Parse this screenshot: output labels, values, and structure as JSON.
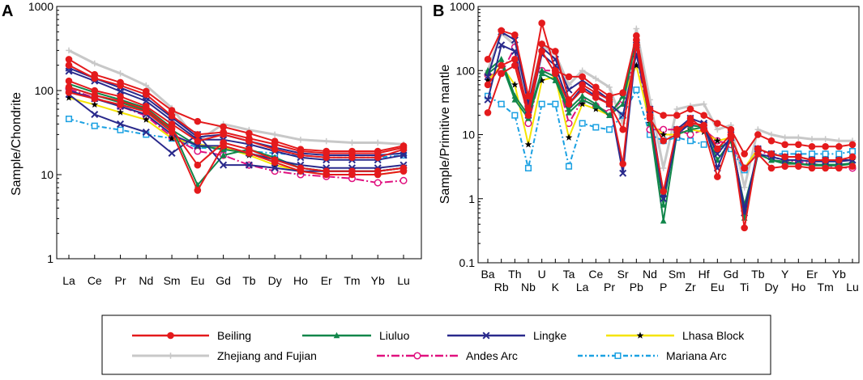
{
  "chart_data": [
    {
      "panel": "A",
      "type": "line",
      "yscale": "log",
      "ylim": [
        1,
        1000
      ],
      "yticks": [
        "1",
        "10",
        "100",
        "1000"
      ],
      "ylabel": "Sample/Chondrite",
      "xlabel": "",
      "categories": [
        "La",
        "Ce",
        "Pr",
        "Nd",
        "Sm",
        "Eu",
        "Gd",
        "Tb",
        "Dy",
        "Ho",
        "Er",
        "Tm",
        "Yb",
        "Lu"
      ],
      "series": [
        {
          "name": "Zhejiang and Fujian",
          "key": "zf",
          "values": [
            300,
            210,
            160,
            115,
            62,
            25,
            40,
            34,
            30,
            26,
            25,
            24,
            24,
            23
          ]
        },
        {
          "name": "Beiling",
          "key": "beiling",
          "values": [
            235,
            155,
            125,
            98,
            58,
            43,
            37,
            31,
            25,
            20,
            19,
            19,
            19,
            22
          ]
        },
        {
          "name": "Beiling",
          "key": "beiling",
          "values": [
            200,
            140,
            115,
            90,
            50,
            30,
            32,
            27,
            23,
            19,
            18,
            18,
            18,
            21
          ]
        },
        {
          "name": "Beiling",
          "key": "beiling",
          "values": [
            130,
            100,
            85,
            65,
            40,
            25,
            30,
            25,
            20,
            17,
            16,
            16,
            16,
            20
          ]
        },
        {
          "name": "Beiling",
          "key": "beiling",
          "values": [
            110,
            88,
            75,
            60,
            35,
            13,
            24,
            20,
            15,
            12,
            11,
            11,
            11,
            12
          ]
        },
        {
          "name": "Beiling",
          "key": "beiling",
          "values": [
            95,
            80,
            68,
            56,
            32,
            6.5,
            22,
            18,
            14,
            11,
            10,
            10,
            10,
            11
          ]
        },
        {
          "name": "Lingke",
          "key": "lingke",
          "values": [
            185,
            140,
            108,
            82,
            48,
            28,
            30,
            25,
            21,
            18,
            17,
            17,
            17,
            18
          ]
        },
        {
          "name": "Lingke",
          "key": "lingke",
          "values": [
            170,
            130,
            98,
            75,
            44,
            26,
            26,
            23,
            19,
            16,
            15,
            15,
            15,
            17
          ]
        },
        {
          "name": "Lingke",
          "key": "lingke",
          "values": [
            90,
            52,
            40,
            32,
            18,
            30,
            13,
            13,
            12,
            11,
            11,
            11,
            11,
            12
          ]
        },
        {
          "name": "Lingke",
          "key": "lingke",
          "values": [
            100,
            80,
            65,
            52,
            30,
            22,
            22,
            18,
            15,
            13,
            12,
            12,
            12,
            13
          ]
        },
        {
          "name": "Liuluo",
          "key": "liuluo",
          "values": [
            120,
            95,
            78,
            62,
            36,
            7.5,
            17,
            20,
            16,
            12,
            11,
            11,
            11,
            12
          ]
        },
        {
          "name": "Liuluo",
          "key": "liuluo",
          "values": [
            110,
            88,
            72,
            58,
            34,
            22,
            20,
            18,
            15,
            12,
            11,
            11,
            11,
            12
          ]
        },
        {
          "name": "Lhasa Block",
          "key": "lhasa",
          "values": [
            82,
            68,
            55,
            45,
            27,
            23,
            21,
            17,
            13,
            11,
            10,
            10,
            10,
            11
          ]
        },
        {
          "name": "Andes Arc",
          "key": "andes",
          "values": [
            105,
            82,
            65,
            50,
            28,
            19,
            17,
            13,
            11,
            10,
            9.5,
            9,
            8,
            8.5
          ]
        },
        {
          "name": "Mariana Arc",
          "key": "mariana",
          "values": [
            46,
            38,
            34,
            30,
            27,
            21,
            20,
            19,
            18,
            17,
            16,
            16,
            16,
            17
          ]
        }
      ]
    },
    {
      "panel": "B",
      "type": "line",
      "yscale": "log",
      "ylim": [
        0.1,
        1000
      ],
      "yticks": [
        "0.1",
        "1",
        "10",
        "100",
        "1000"
      ],
      "ylabel": "Sample/Primitive mantle",
      "xlabel": "",
      "categories": [
        "Ba",
        "Rb",
        "Th",
        "Nb",
        "U",
        "K",
        "Ta",
        "La",
        "Ce",
        "Pr",
        "Sr",
        "Pb",
        "Nd",
        "P",
        "Sm",
        "Zr",
        "Hf",
        "Eu",
        "Gd",
        "Ti",
        "Tb",
        "Dy",
        "Y",
        "Ho",
        "Er",
        "Tm",
        "Yb",
        "Lu"
      ],
      "series": [
        {
          "name": "Zhejiang and Fujian",
          "key": "zf",
          "values": [
            100,
            380,
            250,
            30,
            250,
            180,
            60,
            100,
            75,
            55,
            15,
            450,
            35,
            3,
            25,
            28,
            30,
            12,
            14,
            1.5,
            12,
            10,
            9,
            9,
            8.5,
            8.5,
            8,
            8
          ]
        },
        {
          "name": "Beiling",
          "key": "beiling",
          "values": [
            150,
            420,
            360,
            40,
            550,
            100,
            80,
            80,
            55,
            40,
            45,
            350,
            25,
            20,
            20,
            25,
            20,
            15,
            12,
            5,
            10,
            8,
            7,
            7,
            6.5,
            6.5,
            6.5,
            7
          ]
        },
        {
          "name": "Beiling",
          "key": "beiling",
          "values": [
            60,
            120,
            150,
            25,
            260,
            200,
            35,
            60,
            45,
            35,
            3.5,
            300,
            20,
            1.3,
            12,
            15,
            14,
            6,
            10,
            0.35,
            6,
            5,
            4.5,
            4.5,
            4,
            4,
            4,
            4.5
          ]
        },
        {
          "name": "Beiling",
          "key": "beiling",
          "values": [
            22,
            90,
            120,
            20,
            200,
            90,
            30,
            50,
            38,
            30,
            12,
            250,
            18,
            8,
            10,
            18,
            12,
            2.2,
            9,
            3,
            5,
            3,
            3.2,
            3.2,
            3,
            3,
            3,
            3.2
          ]
        },
        {
          "name": "Lingke",
          "key": "lingke",
          "values": [
            80,
            400,
            300,
            30,
            230,
            150,
            50,
            70,
            50,
            35,
            2.5,
            250,
            25,
            1.2,
            12,
            18,
            15,
            3,
            10,
            0.6,
            6,
            5,
            4.5,
            4.5,
            4,
            4,
            4,
            4
          ]
        },
        {
          "name": "Lingke",
          "key": "lingke",
          "values": [
            35,
            250,
            200,
            20,
            180,
            120,
            30,
            55,
            40,
            30,
            20,
            180,
            20,
            1,
            10,
            15,
            14,
            5,
            9,
            0.7,
            5,
            4.5,
            4,
            4,
            3.8,
            3.8,
            3.8,
            4
          ]
        },
        {
          "name": "Liuluo",
          "key": "liuluo",
          "values": [
            100,
            150,
            40,
            20,
            100,
            80,
            25,
            40,
            30,
            20,
            30,
            320,
            15,
            0.45,
            10,
            12,
            13,
            4,
            8,
            0.5,
            5,
            4,
            3.5,
            3.5,
            3.3,
            3.3,
            3.3,
            3.5
          ]
        },
        {
          "name": "Liuluo",
          "key": "liuluo",
          "values": [
            90,
            130,
            35,
            18,
            90,
            70,
            22,
            35,
            28,
            20,
            40,
            280,
            15,
            0.8,
            12,
            14,
            13,
            6,
            8,
            0.8,
            5,
            4,
            3.8,
            3.5,
            3.4,
            3.4,
            3.4,
            3.6
          ]
        },
        {
          "name": "Lhasa Block",
          "key": "lhasa",
          "values": [
            70,
            120,
            60,
            7,
            70,
            80,
            9,
            30,
            25,
            20,
            40,
            120,
            15,
            10,
            10,
            12,
            11,
            8,
            9,
            3,
            6,
            5,
            4.5,
            4.5,
            4,
            4,
            4,
            4
          ]
        },
        {
          "name": "Andes Arc",
          "key": "andes",
          "values": [
            85,
            90,
            230,
            15,
            100,
            100,
            15,
            35,
            28,
            22,
            35,
            200,
            12,
            12,
            12,
            10,
            12,
            8,
            7,
            3,
            6,
            4.5,
            4,
            3.8,
            3.5,
            3.3,
            3.1,
            3
          ]
        },
        {
          "name": "Mariana Arc",
          "key": "mariana",
          "values": [
            40,
            30,
            20,
            3,
            30,
            30,
            3.2,
            15,
            13,
            12,
            20,
            50,
            10,
            8,
            9,
            8,
            7,
            6,
            6,
            2.8,
            6,
            5,
            5,
            5,
            5,
            5,
            5,
            5.5
          ]
        }
      ]
    }
  ],
  "legend": {
    "rows": [
      [
        {
          "key": "beiling",
          "label": "Beiling"
        },
        {
          "key": "liuluo",
          "label": "Liuluo"
        },
        {
          "key": "lingke",
          "label": "Lingke"
        },
        {
          "key": "lhasa",
          "label": "Lhasa Block"
        }
      ],
      [
        {
          "key": "zf",
          "label": "Zhejiang and Fujian"
        },
        {
          "key": "andes",
          "label": "Andes Arc"
        },
        {
          "key": "mariana",
          "label": "Mariana Arc"
        }
      ]
    ]
  },
  "styles": {
    "beiling": {
      "color": "#e41a1c",
      "marker": "circle",
      "dash": ""
    },
    "liuluo": {
      "color": "#10864a",
      "marker": "triangle",
      "dash": ""
    },
    "lingke": {
      "color": "#2a2a8c",
      "marker": "x",
      "dash": ""
    },
    "lhasa": {
      "color": "#f5e400",
      "marker": "star",
      "dash": ""
    },
    "zf": {
      "color": "#c8c8c8",
      "marker": "plus",
      "dash": ""
    },
    "andes": {
      "color": "#e0117f",
      "marker": "circle-open",
      "dash": "10,3,2,3"
    },
    "mariana": {
      "color": "#1ba1e2",
      "marker": "square-open",
      "dash": "6,3,2,3"
    }
  }
}
